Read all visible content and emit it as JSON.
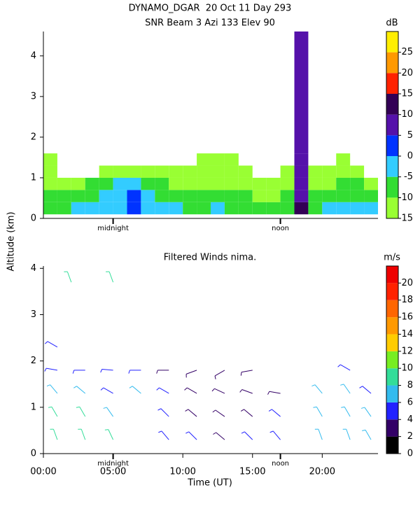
{
  "chart_data": [
    {
      "type": "heatmap",
      "title": "DYNAMO_DGAR  20 Oct 11 Day 293",
      "subtitle": "SNR Beam 3 Azi 133 Elev 90",
      "ylabel": "Altitude (km)",
      "xlim": [
        0,
        24
      ],
      "ylim": [
        0,
        4.6
      ],
      "yticks": [
        0,
        1,
        2,
        3,
        4
      ],
      "annotations": [
        {
          "text": "midnight",
          "x": 5
        },
        {
          "text": "noon",
          "x": 17
        }
      ],
      "snr": {
        "x_edges": [
          0,
          1,
          2,
          3,
          4,
          5,
          6,
          7,
          8,
          9,
          10,
          11,
          12,
          13,
          14,
          15,
          16,
          17,
          18,
          19,
          20,
          21,
          22,
          23,
          24
        ],
        "y_edges": [
          0.1,
          0.4,
          0.7,
          1.0,
          1.3,
          1.6,
          4.6
        ],
        "values": [
          [
            -6,
            -6,
            -5,
            -4,
            -2,
            -1,
            0,
            -2,
            -4,
            -5,
            -6,
            -6,
            -5,
            -6,
            -7,
            -8,
            -8,
            -7,
            10,
            -6,
            -5,
            -4,
            -3,
            -4
          ],
          [
            -9,
            -8,
            -8,
            -6,
            -3,
            -1,
            1,
            -3,
            -6,
            -8,
            -9,
            -9,
            -8,
            -9,
            -10,
            -11,
            -11,
            -10,
            8,
            -10,
            -8,
            -7,
            -7,
            -8
          ],
          [
            -12,
            -12,
            -11,
            -10,
            -7,
            -4,
            -3,
            -6,
            -9,
            -11,
            -12,
            -12,
            -11,
            -12,
            -12,
            -13,
            -13,
            -12,
            8,
            -12,
            -11,
            -10,
            -10,
            -12
          ],
          [
            -13,
            null,
            null,
            null,
            -13,
            -12,
            -11,
            -12,
            -12,
            -13,
            -12,
            -13,
            -12,
            -12,
            -13,
            null,
            null,
            -13,
            8,
            -13,
            -13,
            -12,
            -13,
            null
          ],
          [
            -13,
            null,
            null,
            null,
            null,
            null,
            null,
            null,
            null,
            null,
            null,
            -13,
            -12,
            -13,
            null,
            null,
            null,
            null,
            8,
            null,
            null,
            -13,
            null,
            null
          ],
          [
            null,
            null,
            null,
            null,
            null,
            null,
            null,
            null,
            null,
            null,
            null,
            null,
            null,
            null,
            null,
            null,
            null,
            null,
            7,
            null,
            null,
            null,
            null,
            null
          ]
        ]
      },
      "colorbar": {
        "label": "dB",
        "boundaries": [
          -15,
          -10,
          -5,
          0,
          5,
          10,
          15,
          20,
          25,
          30
        ],
        "colors": [
          "#99ff33",
          "#33dd33",
          "#33ccff",
          "#0033ff",
          "#5511aa",
          "#330055",
          "#ff2200",
          "#ff9900",
          "#ffee00"
        ],
        "ticks": [
          -15,
          -10,
          -5,
          0,
          5,
          10,
          15,
          20,
          25
        ]
      }
    },
    {
      "type": "barbs",
      "title": "Filtered Winds nima.",
      "xlabel": "Time (UT)",
      "xlim": [
        0,
        24
      ],
      "ylim": [
        0,
        4.05
      ],
      "yticks": [
        0,
        1,
        2,
        3,
        4
      ],
      "xticks": [
        {
          "value": 0,
          "label": "00:00"
        },
        {
          "value": 5,
          "label": "05:00"
        },
        {
          "value": 10,
          "label": "10:00"
        },
        {
          "value": 15,
          "label": "15:00"
        },
        {
          "value": 20,
          "label": "20:00"
        }
      ],
      "annotations": [
        {
          "text": "midnight",
          "x": 5
        },
        {
          "text": "noon",
          "x": 17
        }
      ],
      "barbs": {
        "x": [
          1,
          1,
          1,
          1,
          1,
          3,
          3,
          3,
          3,
          5,
          5,
          5,
          5,
          7,
          7,
          9,
          9,
          9,
          9,
          11,
          11,
          11,
          11,
          13,
          13,
          13,
          13,
          15,
          15,
          15,
          15,
          17,
          17,
          17,
          20,
          20,
          20,
          22,
          22,
          22,
          22,
          23.5,
          23.5,
          23.5,
          2,
          5
        ],
        "y": [
          0.3,
          0.8,
          1.3,
          1.8,
          2.3,
          0.3,
          0.8,
          1.3,
          1.8,
          0.3,
          0.8,
          1.3,
          1.8,
          1.3,
          1.8,
          0.3,
          0.8,
          1.3,
          1.8,
          0.3,
          0.8,
          1.3,
          1.8,
          0.3,
          0.8,
          1.3,
          1.8,
          0.3,
          0.8,
          1.3,
          1.8,
          0.3,
          0.8,
          1.3,
          0.3,
          0.8,
          1.3,
          0.3,
          0.8,
          1.3,
          1.8,
          0.3,
          0.8,
          1.3,
          3.7,
          3.7
        ],
        "speed": [
          9,
          8,
          7,
          4,
          5,
          9,
          8,
          6,
          4,
          8,
          7,
          5,
          4,
          6,
          4,
          5,
          5,
          4,
          3,
          4,
          3,
          3,
          3,
          3,
          3,
          3,
          3,
          4,
          3,
          3,
          3,
          4,
          4,
          3,
          7,
          7,
          6,
          6,
          7,
          7,
          5,
          6,
          6,
          5,
          9,
          9
        ],
        "direction": [
          200,
          210,
          220,
          260,
          240,
          200,
          210,
          230,
          270,
          205,
          215,
          240,
          265,
          230,
          270,
          220,
          225,
          240,
          270,
          225,
          230,
          240,
          290,
          230,
          235,
          245,
          300,
          225,
          230,
          250,
          280,
          220,
          230,
          260,
          200,
          210,
          220,
          200,
          210,
          215,
          240,
          210,
          215,
          230,
          200,
          200
        ]
      },
      "colorbar": {
        "label": "m/s",
        "boundaries": [
          0,
          2,
          4,
          6,
          8,
          10,
          12,
          14,
          16,
          18,
          20,
          22
        ],
        "colors": [
          "#000000",
          "#330066",
          "#2222ff",
          "#33bbee",
          "#33dd99",
          "#77ee22",
          "#ffcc00",
          "#ff9900",
          "#ff6600",
          "#ff2200",
          "#ee0000"
        ],
        "ticks": [
          0,
          2,
          4,
          6,
          8,
          10,
          12,
          14,
          16,
          18,
          20
        ]
      }
    }
  ]
}
